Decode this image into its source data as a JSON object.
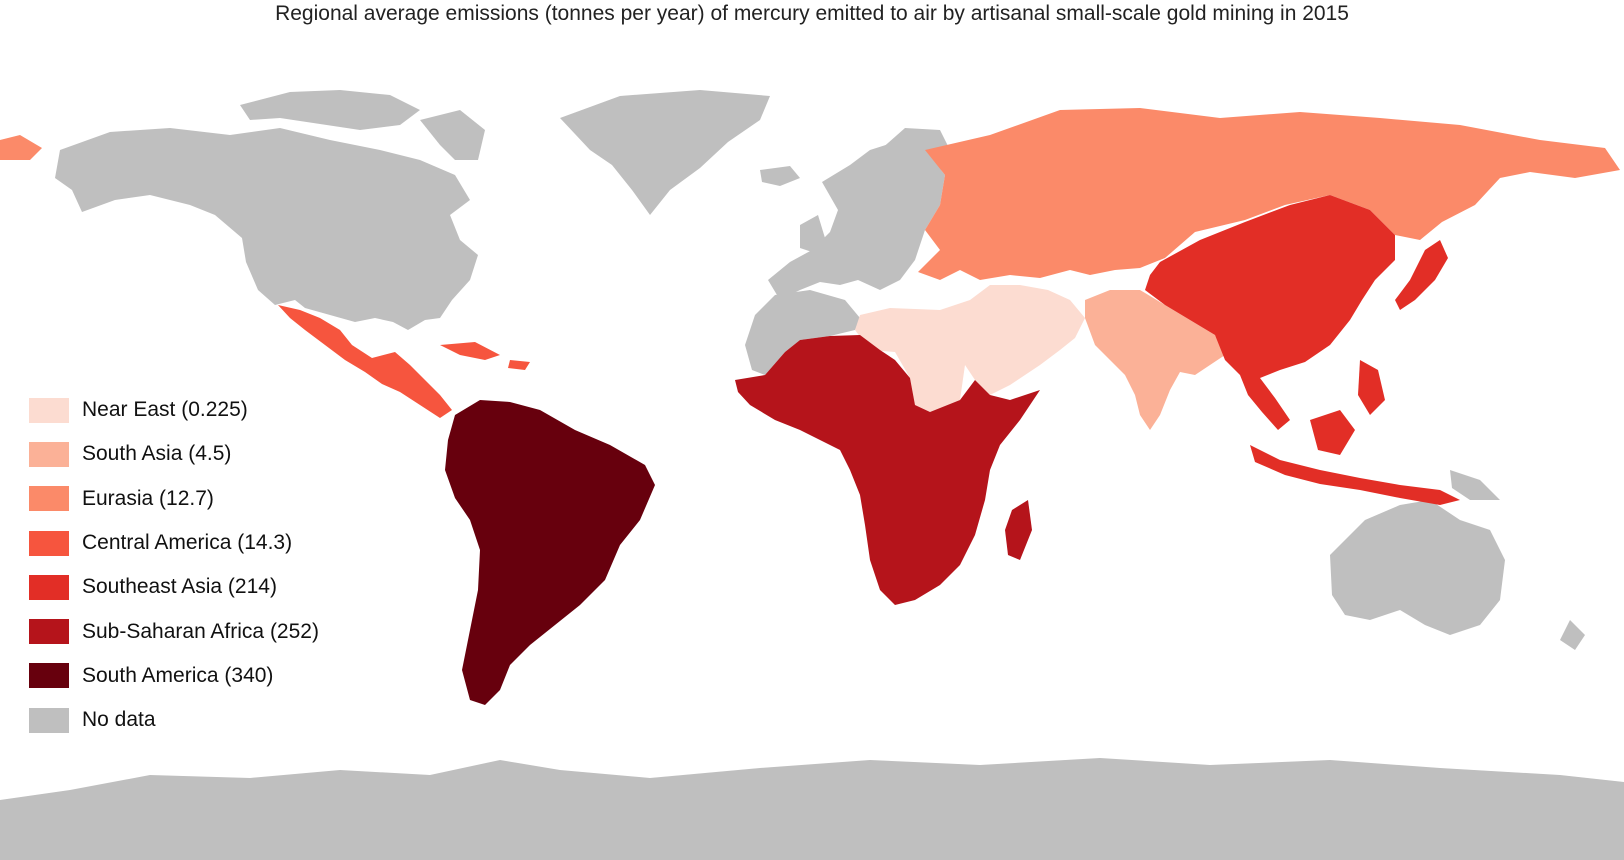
{
  "title": "Regional average emissions (tonnes per year) of mercury emitted to air by artisanal small-scale gold mining in 2015",
  "legend": [
    {
      "label": "Near East (0.225)",
      "color": "#fcdcd1"
    },
    {
      "label": "South Asia (4.5)",
      "color": "#fbb197"
    },
    {
      "label": "Eurasia (12.7)",
      "color": "#fb8a69"
    },
    {
      "label": "Central America (14.3)",
      "color": "#f6553e"
    },
    {
      "label": "Southeast Asia (214)",
      "color": "#e22e26"
    },
    {
      "label": "Sub-Saharan Africa (252)",
      "color": "#b5141b"
    },
    {
      "label": "South America (340)",
      "color": "#67000d"
    },
    {
      "label": "No data",
      "color": "#bfbfbf"
    }
  ],
  "regions": {
    "near_east": {
      "name": "Near East",
      "value": 0.225,
      "color": "#fcdcd1"
    },
    "south_asia": {
      "name": "South Asia",
      "value": 4.5,
      "color": "#fbb197"
    },
    "eurasia": {
      "name": "Eurasia",
      "value": 12.7,
      "color": "#fb8a69"
    },
    "central_america": {
      "name": "Central America",
      "value": 14.3,
      "color": "#f6553e"
    },
    "southeast_asia": {
      "name": "Southeast Asia",
      "value": 214,
      "color": "#e22e26"
    },
    "sub_saharan_africa": {
      "name": "Sub-Saharan Africa",
      "value": 252,
      "color": "#b5141b"
    },
    "south_america": {
      "name": "South America",
      "value": 340,
      "color": "#67000d"
    },
    "no_data": {
      "name": "No data",
      "color": "#bfbfbf"
    }
  }
}
